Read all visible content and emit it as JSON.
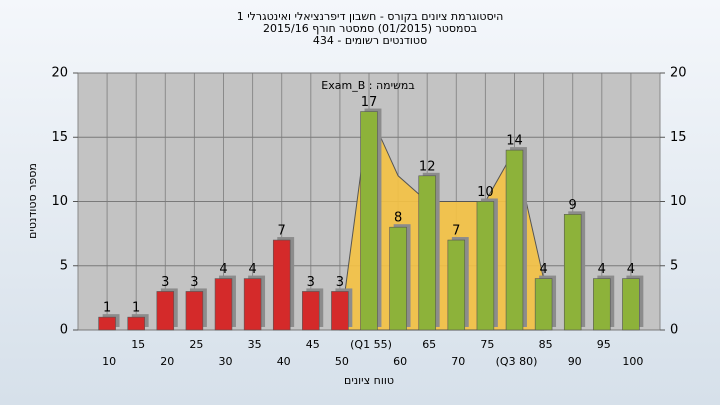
{
  "chart_data": {
    "type": "bar",
    "title_lines": [
      "היסטוגרמת ציונים בקורס - חשבון דיפרנציאלי ואינטגרלי 1",
      "בסמסטר (01/2015) סמסטר חורף 2015/16",
      "סטודנטים רשומים - 434"
    ],
    "annotation": "במשימה : Exam_B",
    "xlabel": "טווח ציונים",
    "ylabel": "מספר סטודנטים",
    "categories": [
      "10",
      "15",
      "20",
      "25",
      "30",
      "35",
      "40",
      "45",
      "50",
      "(Q1 55)",
      "60",
      "65",
      "70",
      "75",
      "(Q3 80)",
      "85",
      "90",
      "95",
      "100"
    ],
    "values": [
      1,
      1,
      3,
      3,
      4,
      4,
      7,
      3,
      3,
      17,
      8,
      12,
      7,
      10,
      14,
      4,
      9,
      4,
      4
    ],
    "colors": [
      "#d42a2a",
      "#d42a2a",
      "#d42a2a",
      "#d42a2a",
      "#d42a2a",
      "#d42a2a",
      "#d42a2a",
      "#d42a2a",
      "#d42a2a",
      "#8db23a",
      "#8db23a",
      "#8db23a",
      "#8db23a",
      "#8db23a",
      "#8db23a",
      "#8db23a",
      "#8db23a",
      "#8db23a",
      "#8db23a"
    ],
    "area": {
      "color": "#f5c242",
      "values": [
        null,
        null,
        null,
        null,
        null,
        null,
        null,
        null,
        0,
        17,
        12,
        10,
        10,
        10,
        14,
        4,
        null,
        null,
        null
      ]
    },
    "ylim": [
      0,
      20
    ],
    "yticks": [
      0,
      5,
      10,
      15,
      20
    ],
    "y2lim": [
      0,
      20
    ],
    "y2ticks": [
      0,
      5,
      10,
      15,
      20
    ],
    "grid": true
  }
}
